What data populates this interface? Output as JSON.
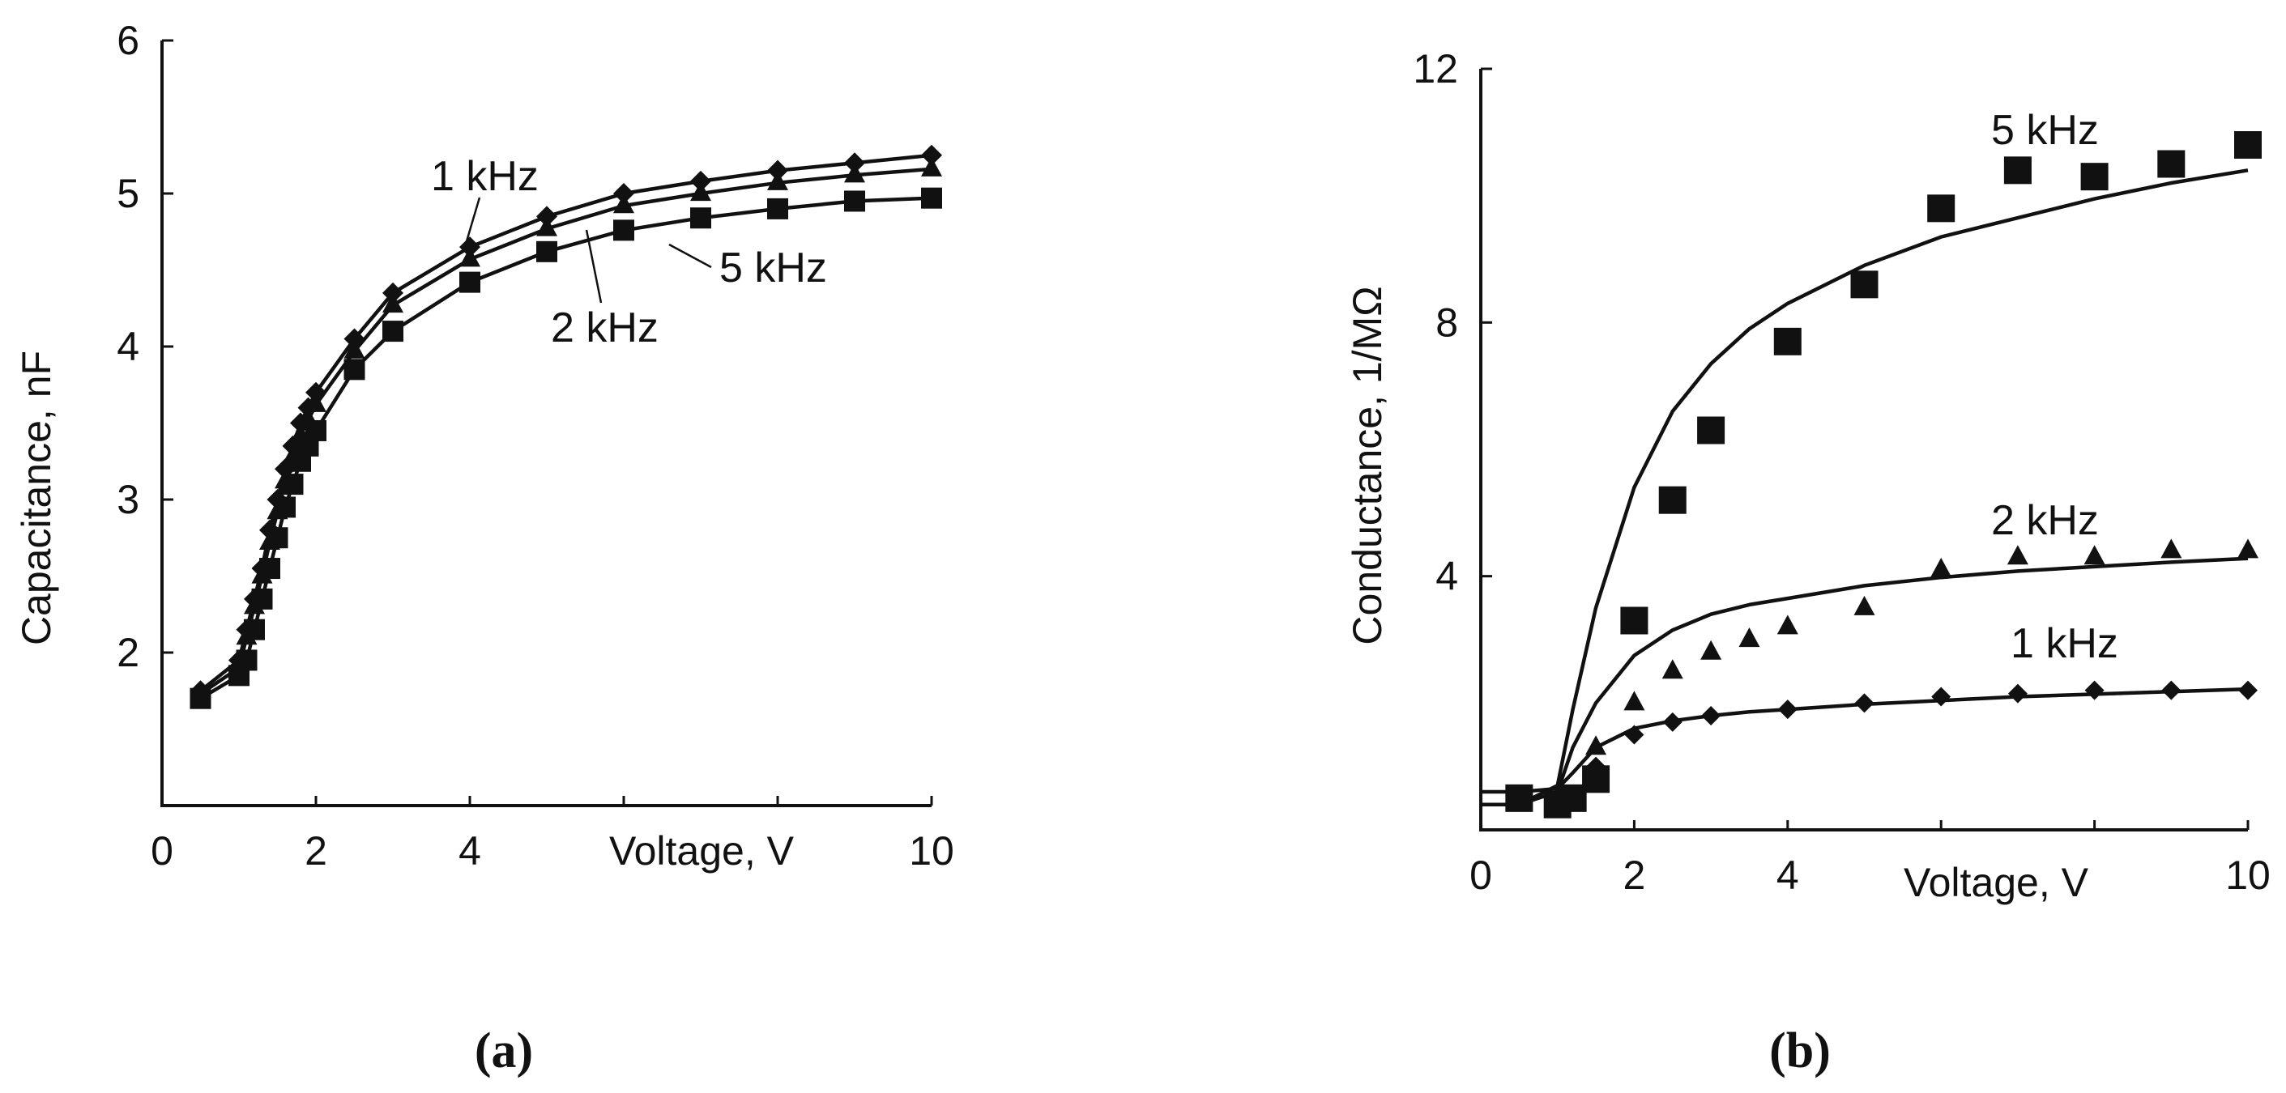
{
  "chart_data": [
    {
      "id": "a",
      "type": "line",
      "panel_label": "(a)",
      "title": "",
      "xlabel": "Voltage, V",
      "ylabel": "Capacitance, nF",
      "xlim": [
        0,
        10
      ],
      "ylim": [
        1,
        6
      ],
      "xticks": [
        0,
        2,
        4,
        6,
        8,
        10
      ],
      "xtick_labels": [
        "0",
        "2",
        "4",
        "",
        "",
        "10"
      ],
      "yticks": [
        2,
        3,
        4,
        5,
        6
      ],
      "ytick_labels": [
        "2",
        "3",
        "4",
        "5",
        "6"
      ],
      "series": [
        {
          "name": "1 kHz",
          "marker": "diamond",
          "x": [
            0.5,
            1.0,
            1.1,
            1.2,
            1.3,
            1.4,
            1.5,
            1.6,
            1.7,
            1.8,
            1.9,
            2.0,
            2.5,
            3.0,
            4.0,
            5.0,
            6.0,
            7.0,
            8.0,
            9.0,
            10.0
          ],
          "y": [
            1.75,
            1.95,
            2.15,
            2.35,
            2.55,
            2.8,
            3.0,
            3.2,
            3.35,
            3.5,
            3.6,
            3.7,
            4.05,
            4.35,
            4.65,
            4.85,
            5.0,
            5.08,
            5.15,
            5.2,
            5.25
          ]
        },
        {
          "name": "2 kHz",
          "marker": "triangle",
          "x": [
            0.5,
            1.0,
            1.1,
            1.2,
            1.3,
            1.4,
            1.5,
            1.6,
            1.7,
            1.8,
            1.9,
            2.0,
            2.5,
            3.0,
            4.0,
            5.0,
            6.0,
            7.0,
            8.0,
            9.0,
            10.0
          ],
          "y": [
            1.73,
            1.9,
            2.1,
            2.3,
            2.5,
            2.72,
            2.92,
            3.12,
            3.28,
            3.42,
            3.52,
            3.62,
            3.97,
            4.27,
            4.57,
            4.77,
            4.92,
            5.0,
            5.07,
            5.12,
            5.16
          ]
        },
        {
          "name": "5 kHz",
          "marker": "square",
          "x": [
            0.5,
            1.0,
            1.1,
            1.2,
            1.3,
            1.4,
            1.5,
            1.6,
            1.7,
            1.8,
            1.9,
            2.0,
            2.5,
            3.0,
            4.0,
            5.0,
            6.0,
            7.0,
            8.0,
            9.0,
            10.0
          ],
          "y": [
            1.7,
            1.85,
            1.95,
            2.15,
            2.35,
            2.55,
            2.75,
            2.95,
            3.1,
            3.25,
            3.35,
            3.45,
            3.85,
            4.1,
            4.42,
            4.62,
            4.76,
            4.84,
            4.9,
            4.95,
            4.97
          ]
        }
      ]
    },
    {
      "id": "b",
      "type": "scatter",
      "panel_label": "(b)",
      "title": "",
      "xlabel": "Voltage, V",
      "ylabel": "Conductance, 1/MΩ",
      "xlim": [
        0,
        10
      ],
      "ylim": [
        0,
        12
      ],
      "xticks": [
        0,
        2,
        4,
        6,
        8,
        10
      ],
      "xtick_labels": [
        "0",
        "2",
        "4",
        "",
        "",
        "10"
      ],
      "yticks": [
        4,
        8,
        12
      ],
      "ytick_labels": [
        "4",
        "8",
        "12"
      ],
      "series": [
        {
          "name": "5 kHz",
          "marker": "square",
          "points_x": [
            0.5,
            1.0,
            1.2,
            1.5,
            2.0,
            2.5,
            3.0,
            4.0,
            5.0,
            6.0,
            7.0,
            8.0,
            9.0,
            10.0
          ],
          "points_y": [
            0.5,
            0.4,
            0.5,
            0.8,
            3.3,
            5.2,
            6.3,
            7.7,
            8.6,
            9.8,
            10.4,
            10.3,
            10.5,
            10.8
          ],
          "fit_x": [
            0,
            0.5,
            1.0,
            1.2,
            1.5,
            2.0,
            2.5,
            3.0,
            3.5,
            4.0,
            5.0,
            6.0,
            7.0,
            8.0,
            9.0,
            10.0
          ],
          "fit_y": [
            0.4,
            0.4,
            0.7,
            1.9,
            3.5,
            5.4,
            6.6,
            7.35,
            7.9,
            8.3,
            8.9,
            9.35,
            9.65,
            9.95,
            10.2,
            10.4
          ]
        },
        {
          "name": "2 kHz",
          "marker": "triangle",
          "points_x": [
            0.5,
            1.0,
            1.5,
            2.0,
            2.5,
            3.0,
            3.5,
            4.0,
            5.0,
            6.0,
            7.0,
            8.0,
            9.0,
            10.0
          ],
          "points_y": [
            0.5,
            0.4,
            1.3,
            2.0,
            2.5,
            2.8,
            3.0,
            3.2,
            3.5,
            4.1,
            4.3,
            4.3,
            4.4,
            4.4
          ],
          "fit_x": [
            0,
            0.5,
            1.0,
            1.2,
            1.5,
            2.0,
            2.5,
            3.0,
            3.5,
            4.0,
            5.0,
            6.0,
            7.0,
            8.0,
            9.0,
            10.0
          ],
          "fit_y": [
            0.4,
            0.4,
            0.6,
            1.3,
            2.0,
            2.75,
            3.15,
            3.4,
            3.55,
            3.65,
            3.85,
            3.98,
            4.08,
            4.15,
            4.22,
            4.28
          ]
        },
        {
          "name": "1 kHz",
          "marker": "diamond",
          "points_x": [
            0.5,
            1.0,
            1.5,
            2.0,
            2.5,
            3.0,
            4.0,
            5.0,
            6.0,
            7.0,
            8.0,
            9.0,
            10.0
          ],
          "points_y": [
            0.5,
            0.4,
            1.0,
            1.5,
            1.7,
            1.8,
            1.9,
            2.0,
            2.1,
            2.15,
            2.2,
            2.2,
            2.2
          ],
          "fit_x": [
            0,
            0.5,
            1.0,
            1.2,
            1.5,
            2.0,
            2.5,
            3.0,
            3.5,
            4.0,
            5.0,
            6.0,
            7.0,
            8.0,
            9.0,
            10.0
          ],
          "fit_y": [
            0.6,
            0.6,
            0.65,
            0.9,
            1.3,
            1.6,
            1.72,
            1.8,
            1.86,
            1.9,
            1.98,
            2.04,
            2.1,
            2.14,
            2.18,
            2.22
          ]
        }
      ]
    }
  ]
}
